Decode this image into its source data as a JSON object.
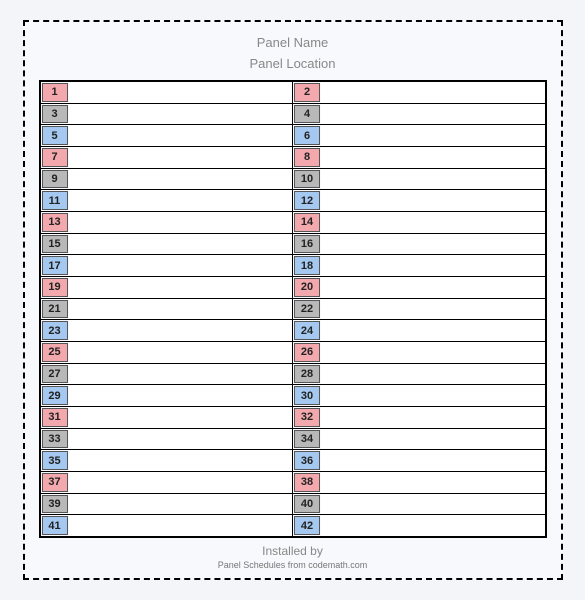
{
  "header": {
    "title": "Panel Name",
    "subtitle": "Panel Location"
  },
  "footer": {
    "installed": "Installed by",
    "credit": "Panel Schedules from codemath.com"
  },
  "colors": {
    "red": "#f2a8ac",
    "gray": "#b8b8b8",
    "blue": "#a4c8ef",
    "row_bg": "#ffffff",
    "page_bg": "#f8f9fc"
  },
  "rows": [
    {
      "left_num": "1",
      "left_color": "red",
      "right_num": "2",
      "right_color": "red"
    },
    {
      "left_num": "3",
      "left_color": "gray",
      "right_num": "4",
      "right_color": "gray"
    },
    {
      "left_num": "5",
      "left_color": "blue",
      "right_num": "6",
      "right_color": "blue"
    },
    {
      "left_num": "7",
      "left_color": "red",
      "right_num": "8",
      "right_color": "red"
    },
    {
      "left_num": "9",
      "left_color": "gray",
      "right_num": "10",
      "right_color": "gray"
    },
    {
      "left_num": "11",
      "left_color": "blue",
      "right_num": "12",
      "right_color": "blue"
    },
    {
      "left_num": "13",
      "left_color": "red",
      "right_num": "14",
      "right_color": "red"
    },
    {
      "left_num": "15",
      "left_color": "gray",
      "right_num": "16",
      "right_color": "gray"
    },
    {
      "left_num": "17",
      "left_color": "blue",
      "right_num": "18",
      "right_color": "blue"
    },
    {
      "left_num": "19",
      "left_color": "red",
      "right_num": "20",
      "right_color": "red"
    },
    {
      "left_num": "21",
      "left_color": "gray",
      "right_num": "22",
      "right_color": "gray"
    },
    {
      "left_num": "23",
      "left_color": "blue",
      "right_num": "24",
      "right_color": "blue"
    },
    {
      "left_num": "25",
      "left_color": "red",
      "right_num": "26",
      "right_color": "red"
    },
    {
      "left_num": "27",
      "left_color": "gray",
      "right_num": "28",
      "right_color": "gray"
    },
    {
      "left_num": "29",
      "left_color": "blue",
      "right_num": "30",
      "right_color": "blue"
    },
    {
      "left_num": "31",
      "left_color": "red",
      "right_num": "32",
      "right_color": "red"
    },
    {
      "left_num": "33",
      "left_color": "gray",
      "right_num": "34",
      "right_color": "gray"
    },
    {
      "left_num": "35",
      "left_color": "blue",
      "right_num": "36",
      "right_color": "blue"
    },
    {
      "left_num": "37",
      "left_color": "red",
      "right_num": "38",
      "right_color": "red"
    },
    {
      "left_num": "39",
      "left_color": "gray",
      "right_num": "40",
      "right_color": "gray"
    },
    {
      "left_num": "41",
      "left_color": "blue",
      "right_num": "42",
      "right_color": "blue"
    }
  ]
}
